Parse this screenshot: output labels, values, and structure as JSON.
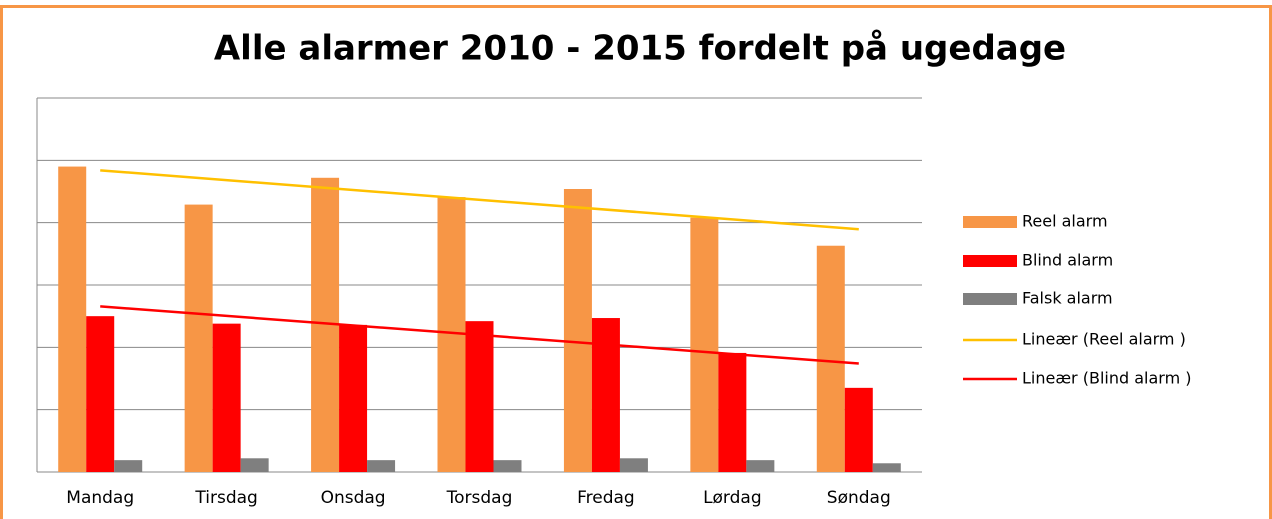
{
  "chart_data": {
    "type": "bar",
    "title": "Alle alarmer 2010 - 2015 fordelt på ugedage",
    "categories": [
      "Mandag",
      "Tirsdag",
      "Onsdag",
      "Torsdag",
      "Fredag",
      "Lørdag",
      "Søndag"
    ],
    "series": [
      {
        "name": "Reel alarm",
        "color": "#f79646",
        "values": [
          4.9,
          4.29,
          4.72,
          4.41,
          4.54,
          4.08,
          3.63
        ]
      },
      {
        "name": "Blind alarm",
        "color": "#ff0000",
        "values": [
          2.5,
          2.38,
          2.36,
          2.42,
          2.47,
          1.91,
          1.35
        ]
      },
      {
        "name": "Falsk alarm",
        "color": "#7f7f7f",
        "values": [
          0.19,
          0.22,
          0.19,
          0.19,
          0.22,
          0.19,
          0.14
        ]
      }
    ],
    "trendlines": [
      {
        "name": "Lineær (Reel alarm )",
        "color": "#ffc000",
        "series": "Reel alarm"
      },
      {
        "name": "Lineær (Blind alarm )",
        "color": "#ff0000",
        "series": "Blind alarm"
      }
    ],
    "ylim": [
      0,
      6
    ],
    "yticks": [
      0,
      1,
      2,
      3,
      4,
      5,
      6
    ],
    "grid": true,
    "legend": "right"
  }
}
